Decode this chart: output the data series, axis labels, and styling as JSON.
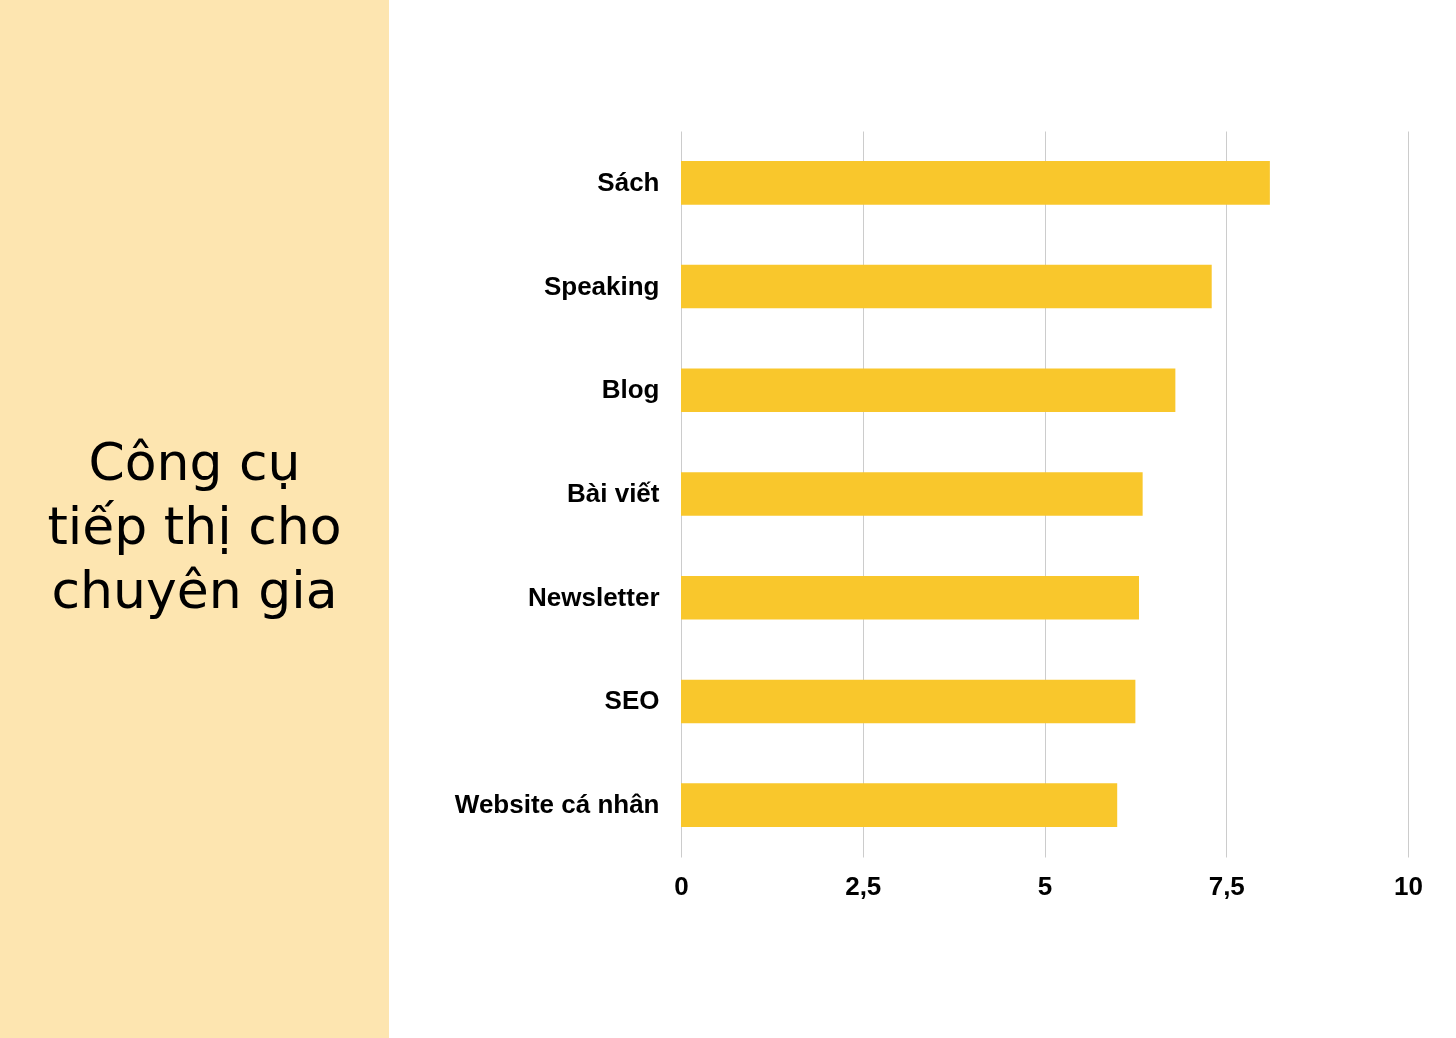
{
  "chart_data": {
    "type": "bar",
    "orientation": "horizontal",
    "title": "Công cụ tiếp thị cho chuyên gia",
    "categories": [
      "Sách",
      "Speaking",
      "Blog",
      "Bài viết",
      "Newsletter",
      "SEO",
      "Website cá nhân"
    ],
    "values": [
      8.1,
      7.3,
      6.8,
      6.35,
      6.3,
      6.25,
      6
    ],
    "color": "#f9c72c",
    "xlim": [
      0,
      10
    ],
    "xticks": [
      0,
      {
        "value": 2.5,
        "label": "2,5"
      },
      5,
      {
        "value": 7.5,
        "label": "7,5"
      },
      10
    ],
    "grid": "x"
  }
}
